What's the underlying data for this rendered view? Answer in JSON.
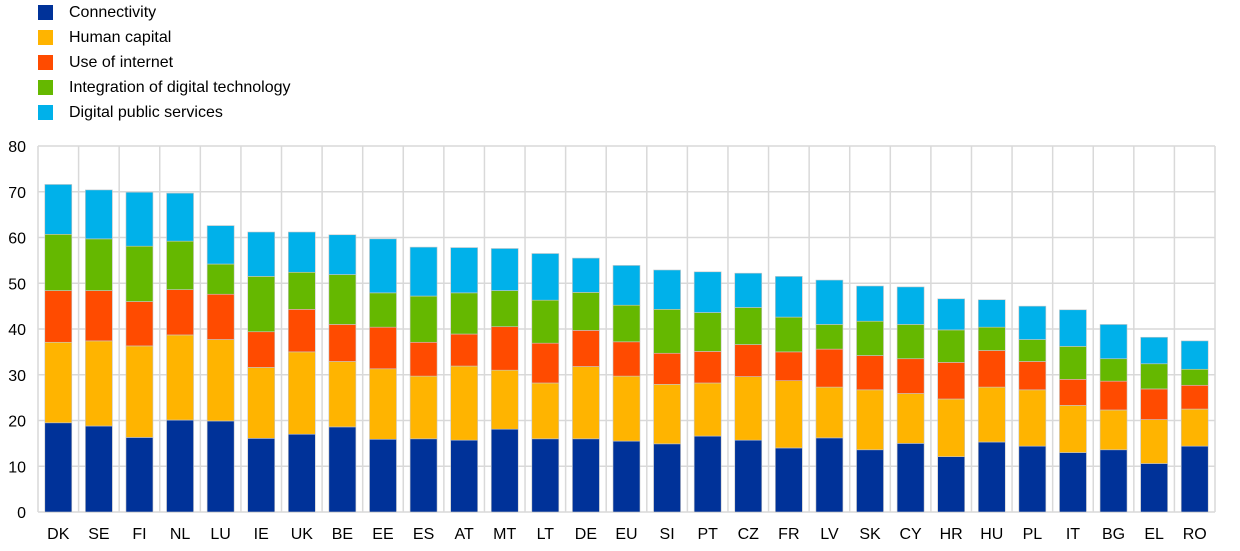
{
  "chart_data": {
    "type": "bar",
    "stacked": true,
    "title": "",
    "xlabel": "",
    "ylabel": "",
    "ylim": [
      0,
      80
    ],
    "yticks": [
      0,
      10,
      20,
      30,
      40,
      50,
      60,
      70,
      80
    ],
    "grid": true,
    "legend_position": "top-left",
    "categories": [
      "DK",
      "SE",
      "FI",
      "NL",
      "LU",
      "IE",
      "UK",
      "BE",
      "EE",
      "ES",
      "AT",
      "MT",
      "LT",
      "DE",
      "EU",
      "SI",
      "PT",
      "CZ",
      "FR",
      "LV",
      "SK",
      "CY",
      "HR",
      "HU",
      "PL",
      "IT",
      "BG",
      "EL",
      "RO"
    ],
    "series": [
      {
        "name": "Connectivity",
        "color": "#003299",
        "values": [
          19.5,
          18.8,
          16.3,
          20.1,
          19.9,
          16.1,
          17.0,
          18.6,
          15.9,
          16.0,
          15.7,
          18.1,
          16.0,
          16.0,
          15.5,
          14.9,
          16.6,
          15.7,
          14.0,
          16.2,
          13.6,
          15.0,
          12.1,
          15.3,
          14.4,
          13.0,
          13.6,
          10.6,
          14.4
        ]
      },
      {
        "name": "Human capital",
        "color": "#FFB400",
        "values": [
          17.6,
          18.6,
          20.0,
          18.6,
          17.8,
          15.5,
          18.0,
          14.3,
          15.4,
          13.7,
          16.2,
          12.9,
          12.2,
          15.8,
          14.2,
          13.0,
          11.6,
          13.9,
          14.7,
          11.1,
          13.1,
          10.9,
          12.6,
          12.0,
          12.3,
          10.3,
          8.7,
          9.6,
          8.1
        ]
      },
      {
        "name": "Use of internet",
        "color": "#FF4B00",
        "values": [
          11.3,
          11.0,
          9.7,
          9.9,
          9.9,
          7.8,
          9.3,
          8.1,
          9.1,
          7.4,
          7.0,
          9.5,
          8.7,
          7.9,
          7.5,
          6.8,
          6.9,
          7.0,
          6.3,
          8.3,
          7.5,
          7.6,
          8.0,
          8.0,
          6.2,
          5.7,
          6.3,
          6.7,
          5.2
        ]
      },
      {
        "name": "Integration of digital technology",
        "color": "#65B800",
        "values": [
          12.3,
          11.3,
          12.1,
          10.6,
          6.6,
          12.1,
          8.1,
          10.9,
          7.5,
          10.1,
          9.0,
          7.9,
          9.4,
          8.3,
          8.0,
          9.6,
          8.5,
          8.1,
          7.6,
          5.4,
          7.5,
          7.5,
          7.1,
          5.1,
          4.8,
          7.2,
          4.9,
          5.5,
          3.5
        ]
      },
      {
        "name": "Digital public services",
        "color": "#00B1EA",
        "values": [
          10.9,
          10.7,
          11.8,
          10.5,
          8.4,
          9.7,
          8.8,
          8.7,
          11.8,
          10.7,
          9.9,
          9.2,
          10.2,
          7.5,
          8.7,
          8.6,
          8.9,
          7.5,
          8.9,
          9.7,
          7.7,
          8.2,
          6.8,
          6.0,
          7.3,
          8.0,
          7.5,
          5.8,
          6.2
        ]
      }
    ]
  }
}
